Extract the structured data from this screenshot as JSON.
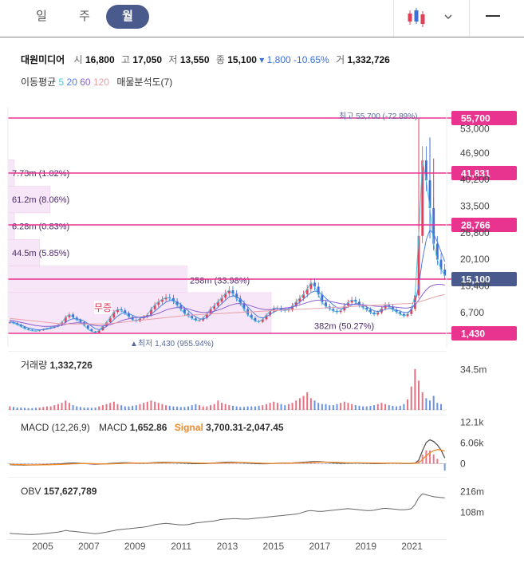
{
  "tabs": [
    {
      "label": "일"
    },
    {
      "label": "주"
    },
    {
      "label": "월"
    }
  ],
  "header": {
    "name": "대원미디어",
    "open_label": "시",
    "open": "16,800",
    "high_label": "고",
    "high": "17,050",
    "low_label": "저",
    "low": "13,550",
    "close_label": "종",
    "close": "15,100",
    "change": "▾ 1,800 -10.65%",
    "vol_label": "거",
    "volume": "1,332,726"
  },
  "ma": {
    "label": "이동평균",
    "p5": "5",
    "p20": "20",
    "p60": "60",
    "p120": "120",
    "profile": "매물분석도(7)"
  },
  "colors": {
    "up": "#e0405a",
    "down": "#3a6fd8",
    "pink": "#e8338f",
    "ma5": "#4fc3d9",
    "ma20": "#4a7fe8",
    "ma60": "#8a5fd1",
    "ma120": "#e8a0a8",
    "signal": "#f08a2a",
    "price_tag": "#4a5a8c"
  },
  "chart_data": [
    {
      "type": "candlestick",
      "x_axis": {
        "ticks": [
          "2005",
          "2007",
          "2009",
          "2011",
          "2013",
          "2015",
          "2017",
          "2019",
          "2021"
        ],
        "range": [
          2003.5,
          2022.5
        ]
      },
      "y_axis": {
        "scale": "linear",
        "ticks": [
          "53,000",
          "46,900",
          "40,200",
          "33,500",
          "26,800",
          "20,100",
          "13,400",
          "6,700"
        ],
        "ylim": [
          0,
          58500
        ]
      },
      "grid": false,
      "price_levels": [
        "55,700",
        "41,831",
        "28,766",
        "15,100",
        "1,430"
      ],
      "max_label": "최고 55,700 (-72.89%)",
      "min_label": "▲최저 1,430 (955.94%)",
      "event_label": "무증",
      "volume_profile": [
        {
          "label": "7.73m (1.02%)",
          "low": 38500,
          "high": 45200,
          "fraction": 0.01
        },
        {
          "label": "61.2m (8.06%)",
          "low": 31800,
          "high": 38500,
          "fraction": 0.08
        },
        {
          "label": "6.28m (0.83%)",
          "low": 25100,
          "high": 31800,
          "fraction": 0.01
        },
        {
          "label": "44.5m (5.85%)",
          "low": 18400,
          "high": 25100,
          "fraction": 0.06
        },
        {
          "label": "258m (33.98%)",
          "low": 11700,
          "high": 18400,
          "fraction": 0.34
        },
        {
          "label": "382m (50.27%)",
          "low": 1430,
          "high": 11700,
          "fraction": 0.5
        }
      ],
      "series": [
        {
          "name": "5",
          "values": [
            4200,
            4000,
            3600,
            3100,
            2600,
            2300,
            2100,
            2000,
            2200,
            2500,
            2700,
            2900,
            3200,
            3500,
            4200,
            5500,
            6200,
            5400,
            4800,
            4200,
            3400,
            2500,
            1900,
            1600,
            2200,
            3200,
            4200,
            5400,
            6800,
            7500,
            7200,
            6500,
            5600,
            4800,
            4500,
            5200,
            5600,
            6100,
            7500,
            8600,
            9400,
            10000,
            10500,
            10300,
            9500,
            8500,
            7500,
            6400,
            5800,
            5200,
            4700,
            4700,
            5300,
            6400,
            7600,
            8400,
            9400,
            10400,
            11500,
            12300,
            11400,
            10200,
            9000,
            7500,
            6100,
            5300,
            4500,
            4300,
            5000,
            6000,
            7000,
            7800,
            7800,
            7300,
            7200,
            7400,
            8400,
            9400,
            10300,
            11300,
            12600,
            14200,
            13200,
            11200,
            9200,
            8200,
            7600,
            7100,
            6800,
            7200,
            8400,
            9200,
            9900,
            9400,
            8500,
            7900,
            7400,
            6700,
            6200,
            6700,
            7700,
            8600,
            8200,
            7400,
            6800,
            6300,
            5800,
            6300,
            7600,
            11000,
            26000,
            45000,
            40000,
            33000,
            24000,
            20000,
            17500,
            16000
          ]
        },
        {
          "name": "20",
          "values": [
            4400,
            4200,
            3900,
            3500,
            3100,
            2800,
            2600,
            2400,
            2300,
            2350,
            2500,
            2700,
            2900,
            3200,
            3600,
            4200,
            4800,
            5100,
            5100,
            4900,
            4500,
            3900,
            3200,
            2600,
            2400,
            2600,
            3200,
            4000,
            4900,
            5800,
            6400,
            6600,
            6400,
            6000,
            5600,
            5400,
            5400,
            5600,
            6200,
            7000,
            7800,
            8600,
            9300,
            9700,
            9700,
            9300,
            8700,
            7900,
            7100,
            6300,
            5600,
            5100,
            5000,
            5400,
            6200,
            7100,
            8000,
            8900,
            9800,
            10600,
            10900,
            10700,
            10100,
            9200,
            8100,
            7100,
            6200,
            5500,
            5300,
            5600,
            6200,
            6800,
            7200,
            7400,
            7500,
            7600,
            8000,
            8600,
            9300,
            10100,
            10900,
            11700,
            12100,
            11900,
            11200,
            10300,
            9400,
            8600,
            7900,
            7600,
            7700,
            8100,
            8600,
            8900,
            8800,
            8500,
            8100,
            7600,
            7100,
            6900,
            7100,
            7500,
            7700,
            7600,
            7300,
            7000,
            6700,
            6700,
            7300,
            9000,
            13500,
            20000,
            25000,
            27500,
            26500,
            24500,
            22000,
            19500
          ]
        },
        {
          "name": "60",
          "values": [
            4800,
            4600,
            4400,
            4200,
            4000,
            3800,
            3600,
            3400,
            3300,
            3200,
            3200,
            3200,
            3300,
            3400,
            3500,
            3700,
            3900,
            4000,
            4100,
            4100,
            4000,
            3800,
            3600,
            3400,
            3300,
            3300,
            3400,
            3600,
            3900,
            4200,
            4600,
            4900,
            5100,
            5300,
            5400,
            5500,
            5600,
            5700,
            5900,
            6200,
            6500,
            6900,
            7300,
            7600,
            7800,
            7900,
            7900,
            7800,
            7600,
            7300,
            7000,
            6800,
            6700,
            6700,
            6800,
            7000,
            7300,
            7600,
            8000,
            8400,
            8700,
            8900,
            8900,
            8800,
            8600,
            8300,
            8000,
            7700,
            7500,
            7400,
            7400,
            7500,
            7600,
            7700,
            7800,
            7900,
            8100,
            8300,
            8600,
            8900,
            9200,
            9500,
            9700,
            9800,
            9800,
            9700,
            9500,
            9300,
            9100,
            8900,
            8800,
            8700,
            8700,
            8700,
            8700,
            8600,
            8500,
            8400,
            8300,
            8200,
            8200,
            8200,
            8200,
            8100,
            8000,
            7900,
            7800,
            7800,
            8000,
            8600,
            9800,
            11200,
            12400,
            13200,
            13600,
            13800,
            13800,
            13600
          ]
        },
        {
          "name": "120",
          "values": [
            5200,
            5100,
            5000,
            4900,
            4800,
            4700,
            4600,
            4500,
            4400,
            4300,
            4200,
            4100,
            4000,
            3900,
            3850,
            3800,
            3800,
            3800,
            3800,
            3800,
            3800,
            3800,
            3800,
            3800,
            3800,
            3800,
            3850,
            3900,
            4000,
            4100,
            4200,
            4300,
            4400,
            4500,
            4600,
            4700,
            4800,
            4900,
            5000,
            5100,
            5200,
            5300,
            5400,
            5500,
            5600,
            5700,
            5800,
            5900,
            6000,
            6050,
            6100,
            6150,
            6200,
            6250,
            6300,
            6350,
            6400,
            6450,
            6500,
            6550,
            6600,
            6650,
            6700,
            6750,
            6800,
            6850,
            6900,
            6950,
            7000,
            7050,
            7100,
            7150,
            7200,
            7250,
            7300,
            7350,
            7400,
            7450,
            7500,
            7550,
            7600,
            7650,
            7700,
            7750,
            7800,
            7850,
            7900,
            7950,
            8000,
            8050,
            8100,
            8150,
            8200,
            8250,
            8300,
            8350,
            8400,
            8450,
            8500,
            8550,
            8600,
            8650,
            8700,
            8750,
            8800,
            8850,
            8900,
            8950,
            9000,
            9100,
            9300,
            9600,
            9900,
            10200,
            10500,
            10800,
            11000,
            11200
          ]
        }
      ]
    },
    {
      "type": "bar",
      "title": "거래량",
      "value": "1,332,726",
      "y_axis": {
        "ticks": [
          "34.5m"
        ],
        "ylim": [
          0,
          45000000
        ]
      },
      "values": [
        3,
        2.5,
        2,
        2,
        1.8,
        1.5,
        1.5,
        1.8,
        2,
        2.5,
        3,
        3,
        4,
        5,
        6,
        8,
        6,
        4,
        3,
        2.5,
        2,
        2,
        1.8,
        2,
        3,
        4,
        5,
        6,
        7,
        5,
        4,
        3,
        3,
        3.5,
        4,
        5,
        6,
        7,
        8,
        7,
        6,
        5,
        4,
        3.5,
        3,
        2.8,
        2.5,
        2.5,
        3,
        4,
        5,
        4,
        3,
        3,
        4,
        5,
        8,
        6,
        5,
        4,
        3.5,
        3,
        2.5,
        2.5,
        3,
        3,
        3,
        3.5,
        4,
        5,
        6,
        7,
        6,
        5,
        4,
        5,
        6,
        8,
        10,
        12,
        15,
        10,
        8,
        6,
        5,
        5,
        4,
        4,
        5,
        6,
        7,
        6,
        5,
        4,
        3.5,
        3,
        3,
        3.5,
        4,
        5,
        6,
        5,
        4,
        3.5,
        3,
        3.5,
        5,
        9,
        20,
        35,
        25,
        15,
        10,
        8,
        12,
        6,
        5
      ]
    },
    {
      "type": "line",
      "title": "MACD (12,26,9)",
      "macd_label": "MACD",
      "macd_value": "1,652.86",
      "signal_label": "Signal",
      "signal_value": "3,700.31",
      "hist_value": "-2,047.45",
      "y_axis": {
        "ticks": [
          "12.1k",
          "6.06k",
          "0"
        ],
        "ylim": [
          -2500,
          12500
        ]
      },
      "series": [
        {
          "name": "MACD",
          "values": [
            -300,
            -350,
            -400,
            -420,
            -430,
            -420,
            -400,
            -380,
            -360,
            -320,
            -280,
            -240,
            -200,
            -150,
            -80,
            20,
            120,
            150,
            120,
            80,
            20,
            -40,
            -100,
            -150,
            -160,
            -120,
            -60,
            20,
            100,
            180,
            230,
            250,
            230,
            200,
            170,
            150,
            150,
            170,
            220,
            280,
            340,
            380,
            400,
            390,
            350,
            300,
            240,
            170,
            100,
            40,
            0,
            -20,
            0,
            40,
            100,
            170,
            240,
            310,
            380,
            430,
            420,
            380,
            320,
            250,
            170,
            90,
            20,
            -30,
            -50,
            -30,
            10,
            60,
            100,
            130,
            150,
            170,
            200,
            250,
            310,
            380,
            460,
            540,
            580,
            560,
            500,
            420,
            330,
            250,
            170,
            120,
            110,
            140,
            180,
            200,
            190,
            160,
            120,
            80,
            40,
            20,
            30,
            60,
            90,
            100,
            90,
            70,
            40,
            20,
            40,
            150,
            1000,
            3800,
            6200,
            7000,
            6500,
            5500,
            4000,
            1650
          ]
        },
        {
          "name": "Signal",
          "values": [
            -200,
            -250,
            -290,
            -320,
            -350,
            -370,
            -380,
            -385,
            -380,
            -370,
            -350,
            -330,
            -300,
            -270,
            -230,
            -180,
            -120,
            -70,
            -30,
            0,
            10,
            0,
            -20,
            -50,
            -80,
            -100,
            -100,
            -80,
            -50,
            -10,
            40,
            90,
            130,
            160,
            170,
            170,
            165,
            165,
            175,
            195,
            225,
            260,
            290,
            315,
            330,
            330,
            320,
            300,
            270,
            230,
            190,
            150,
            120,
            105,
            105,
            120,
            145,
            180,
            220,
            265,
            300,
            320,
            325,
            310,
            285,
            245,
            200,
            150,
            110,
            80,
            65,
            65,
            75,
            90,
            110,
            130,
            150,
            175,
            205,
            240,
            285,
            335,
            385,
            420,
            440,
            440,
            420,
            390,
            350,
            310,
            270,
            240,
            225,
            220,
            215,
            210,
            200,
            185,
            165,
            145,
            130,
            120,
            115,
            115,
            110,
            100,
            85,
            75,
            80,
            110,
            300,
            1200,
            2300,
            3200,
            3800,
            4100,
            4000,
            3700
          ]
        }
      ]
    },
    {
      "type": "line",
      "title": "OBV",
      "value": "157,627,789",
      "y_axis": {
        "ticks": [
          "216m",
          "108m"
        ],
        "ylim": [
          -30000000,
          260000000
        ]
      },
      "series": [
        {
          "name": "OBV",
          "values": [
            0,
            -2,
            -3,
            -4,
            -5,
            -6,
            -6,
            -5,
            -4,
            -2,
            0,
            2,
            4,
            6,
            10,
            15,
            12,
            10,
            8,
            6,
            4,
            2,
            0,
            -2,
            0,
            3,
            6,
            10,
            14,
            18,
            20,
            22,
            24,
            26,
            28,
            30,
            32,
            35,
            40,
            45,
            48,
            50,
            52,
            50,
            48,
            46,
            44,
            44,
            46,
            50,
            54,
            56,
            58,
            60,
            62,
            64,
            68,
            72,
            74,
            75,
            76,
            76,
            75,
            74,
            74,
            76,
            78,
            80,
            82,
            84,
            86,
            88,
            90,
            92,
            94,
            96,
            98,
            100,
            104,
            110,
            116,
            118,
            116,
            114,
            114,
            116,
            118,
            120,
            122,
            124,
            126,
            128,
            126,
            124,
            122,
            120,
            118,
            118,
            120,
            124,
            128,
            130,
            128,
            126,
            124,
            122,
            122,
            124,
            128,
            150,
            185,
            205,
            200,
            195,
            190,
            188,
            186,
            184
          ]
        }
      ]
    }
  ]
}
